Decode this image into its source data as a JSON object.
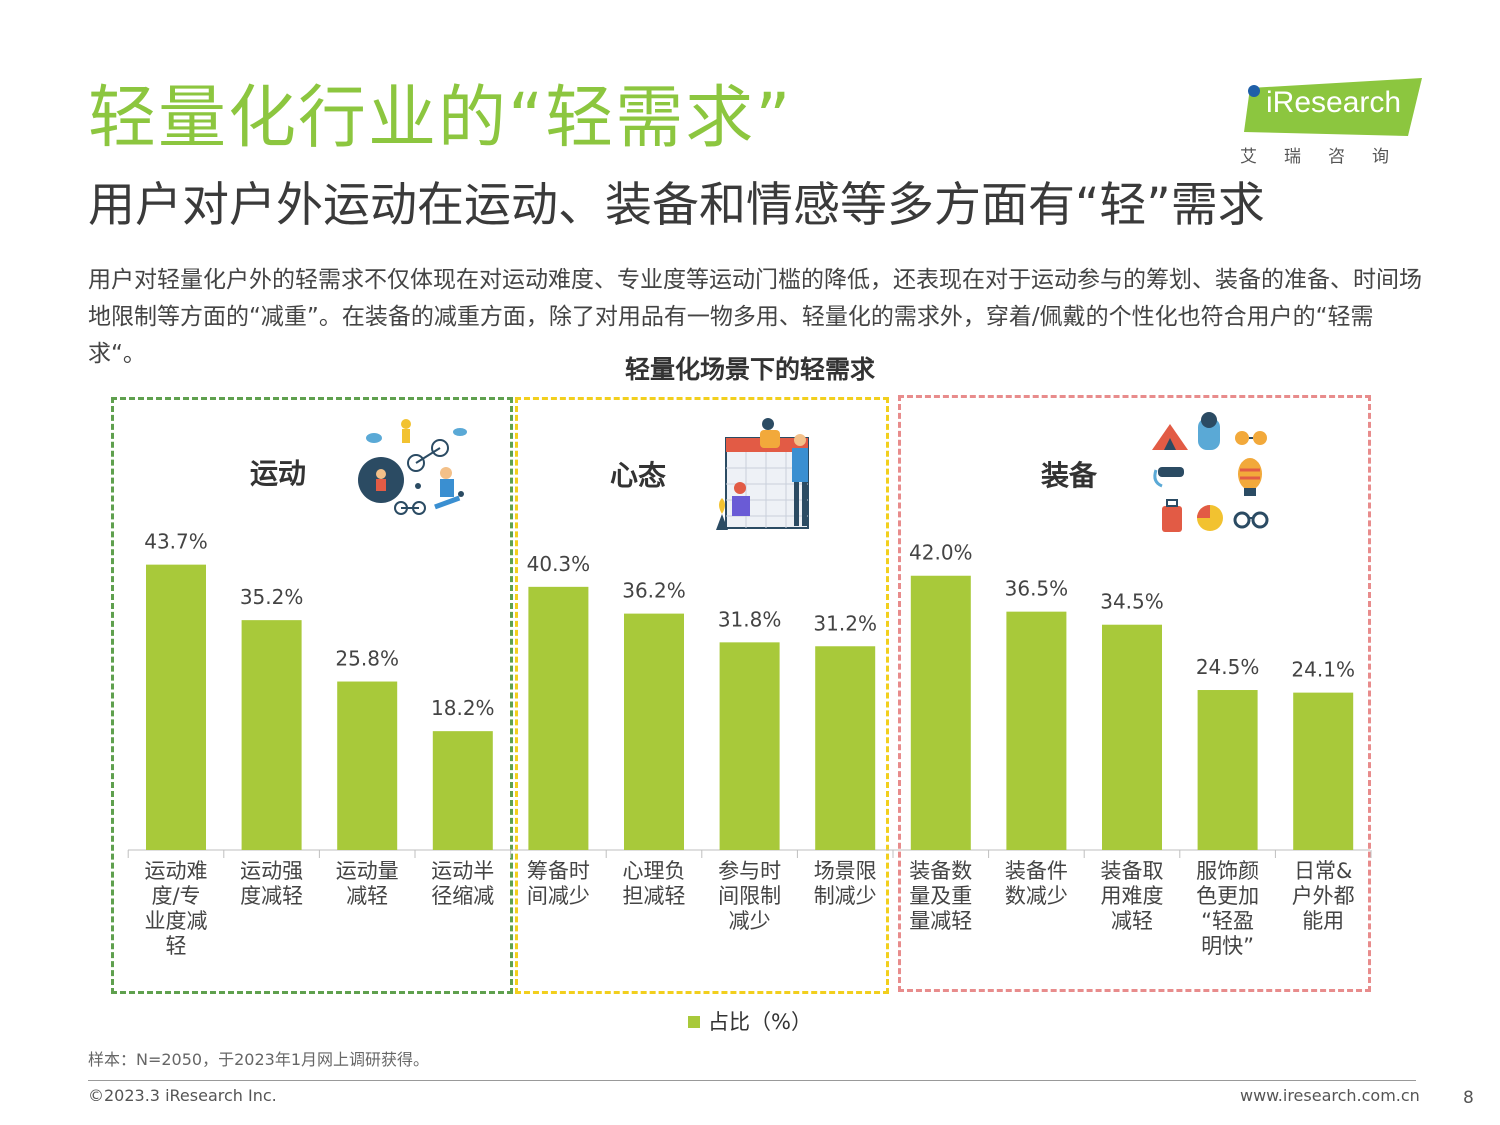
{
  "title": "轻量化行业的“轻需求”",
  "subtitle": "用户对户外运动在运动、装备和情感等多方面有“轻”需求",
  "description": "用户对轻量化户外的轻需求不仅体现在对运动难度、专业度等运动门槛的降低，还表现在对于运动参与的筹划、装备的准备、时间场地限制等方面的“减重”。在装备的减重方面，除了对用品有一物多用、轻量化的需求外，穿着/佩戴的个性化也符合用户的“轻需求“。",
  "logo": {
    "word": "iResearch",
    "sub": "艾瑞咨询"
  },
  "colors": {
    "bar": "#a8c93a",
    "title": "#8cc63f",
    "group1": "#5fa04e",
    "group2": "#f2cf1d",
    "group3": "#e88c8c"
  },
  "groups": [
    {
      "name": "运动",
      "icon": "sports-icon"
    },
    {
      "name": "心态",
      "icon": "mindset-icon"
    },
    {
      "name": "装备",
      "icon": "equipment-icon"
    }
  ],
  "chart_data": {
    "type": "bar",
    "title": "轻量化场景下的轻需求",
    "legend": [
      "占比（%）"
    ],
    "legend_position": "bottom",
    "grid": false,
    "ylim": [
      0,
      50
    ],
    "categories": [
      "运动难度/专业度减轻",
      "运动强度减轻",
      "运动量减轻",
      "运动半径缩减",
      "筹备时间减少",
      "心理负担减轻",
      "参与时间限制减少",
      "场景限制减少",
      "装备数量及重量减轻",
      "装备件数减少",
      "装备取用难度减轻",
      "服饰颜色更加“轻盈明快”",
      "日常&户外都能用"
    ],
    "values": [
      43.7,
      35.2,
      25.8,
      18.2,
      40.3,
      36.2,
      31.8,
      31.2,
      42.0,
      36.5,
      34.5,
      24.5,
      24.1
    ],
    "value_labels": [
      "43.7%",
      "35.2%",
      "25.8%",
      "18.2%",
      "40.3%",
      "36.2%",
      "31.8%",
      "31.2%",
      "42.0%",
      "36.5%",
      "34.5%",
      "24.5%",
      "24.1%"
    ],
    "category_lines": [
      [
        "运动难",
        "度/专",
        "业度减",
        "轻"
      ],
      [
        "运动强",
        "度减轻"
      ],
      [
        "运动量",
        "减轻"
      ],
      [
        "运动半",
        "径缩减"
      ],
      [
        "筹备时",
        "间减少"
      ],
      [
        "心理负",
        "担减轻"
      ],
      [
        "参与时",
        "间限制",
        "减少"
      ],
      [
        "场景限",
        "制减少"
      ],
      [
        "装备数",
        "量及重",
        "量减轻"
      ],
      [
        "装备件",
        "数减少"
      ],
      [
        "装备取",
        "用难度",
        "减轻"
      ],
      [
        "服饰颜",
        "色更加",
        "“轻盈",
        "明快”"
      ],
      [
        "日常&",
        "户外都",
        "能用"
      ]
    ],
    "series": [
      {
        "name": "占比（%）"
      }
    ]
  },
  "footer": {
    "note": "样本：N=2050，于2023年1月网上调研获得。",
    "copyright": "©2023.3 iResearch Inc.",
    "website": "www.iresearch.com.cn",
    "page": "8"
  }
}
